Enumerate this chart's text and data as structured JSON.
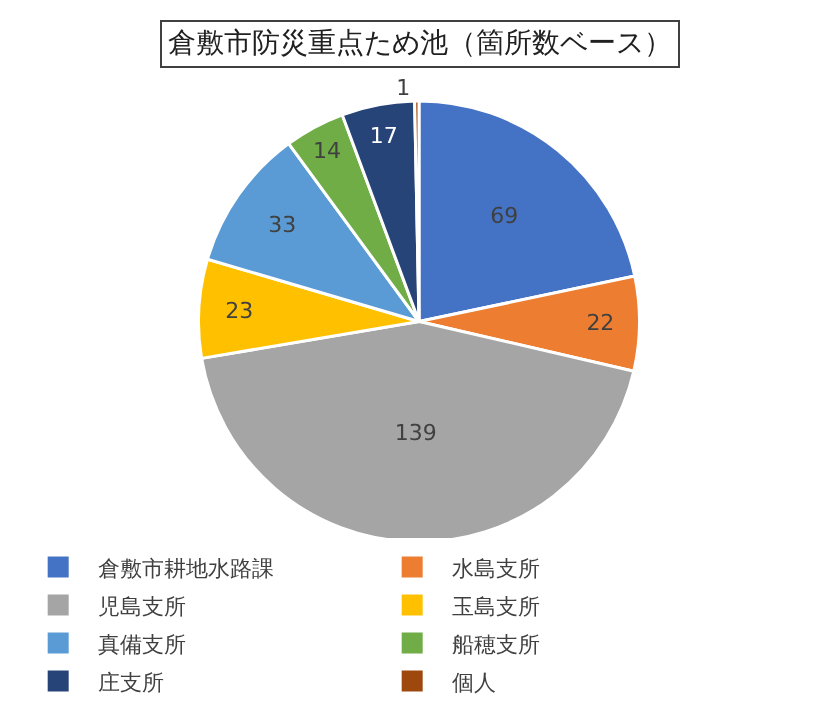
{
  "chart_data": {
    "type": "pie",
    "title": "倉敷市防災重点ため池（箇所数ベース）",
    "categories": [
      "倉敷市耕地水路課",
      "水島支所",
      "児島支所",
      "玉島支所",
      "真備支所",
      "船穂支所",
      "庄支所",
      "個人"
    ],
    "values": [
      69,
      22,
      139,
      23,
      33,
      14,
      17,
      1
    ],
    "colors": [
      "#4472c4",
      "#ed7d31",
      "#a5a5a5",
      "#ffc000",
      "#5b9bd5",
      "#70ad47",
      "#264478",
      "#9e480e"
    ],
    "data_labels": true,
    "legend": "bottom"
  }
}
